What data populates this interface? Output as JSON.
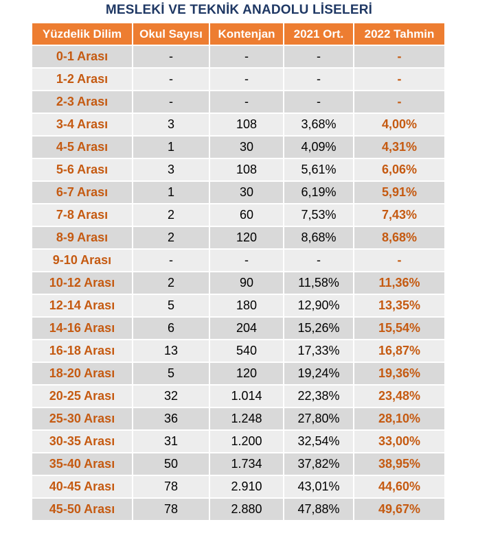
{
  "title": "MESLEKİ VE TEKNİK ANADOLU LİSELERİ",
  "colors": {
    "header_bg": "#ed7d31",
    "accent_text": "#c55a11",
    "title_text": "#1f3864",
    "row_dark": "#d9d9d9",
    "row_light": "#ededed"
  },
  "table": {
    "headers": [
      "Yüzdelik Dilim",
      "Okul Sayısı",
      "Kontenjan",
      "2021 Ort.",
      "2022 Tahmin"
    ],
    "rows": [
      [
        "0-1 Arası",
        "-",
        "-",
        "-",
        "-"
      ],
      [
        "1-2 Arası",
        "-",
        "-",
        "-",
        "-"
      ],
      [
        "2-3 Arası",
        "-",
        "-",
        "-",
        "-"
      ],
      [
        "3-4 Arası",
        "3",
        "108",
        "3,68%",
        "4,00%"
      ],
      [
        "4-5 Arası",
        "1",
        "30",
        "4,09%",
        "4,31%"
      ],
      [
        "5-6 Arası",
        "3",
        "108",
        "5,61%",
        "6,06%"
      ],
      [
        "6-7 Arası",
        "1",
        "30",
        "6,19%",
        "5,91%"
      ],
      [
        "7-8 Arası",
        "2",
        "60",
        "7,53%",
        "7,43%"
      ],
      [
        "8-9 Arası",
        "2",
        "120",
        "8,68%",
        "8,68%"
      ],
      [
        "9-10 Arası",
        "-",
        "-",
        "-",
        "-"
      ],
      [
        "10-12 Arası",
        "2",
        "90",
        "11,58%",
        "11,36%"
      ],
      [
        "12-14 Arası",
        "5",
        "180",
        "12,90%",
        "13,35%"
      ],
      [
        "14-16 Arası",
        "6",
        "204",
        "15,26%",
        "15,54%"
      ],
      [
        "16-18 Arası",
        "13",
        "540",
        "17,33%",
        "16,87%"
      ],
      [
        "18-20 Arası",
        "5",
        "120",
        "19,24%",
        "19,36%"
      ],
      [
        "20-25 Arası",
        "32",
        "1.014",
        "22,38%",
        "23,48%"
      ],
      [
        "25-30 Arası",
        "36",
        "1.248",
        "27,80%",
        "28,10%"
      ],
      [
        "30-35 Arası",
        "31",
        "1.200",
        "32,54%",
        "33,00%"
      ],
      [
        "35-40 Arası",
        "50",
        "1.734",
        "37,82%",
        "38,95%"
      ],
      [
        "40-45 Arası",
        "78",
        "2.910",
        "43,01%",
        "44,60%"
      ],
      [
        "45-50 Arası",
        "78",
        "2.880",
        "47,88%",
        "49,67%"
      ]
    ]
  }
}
